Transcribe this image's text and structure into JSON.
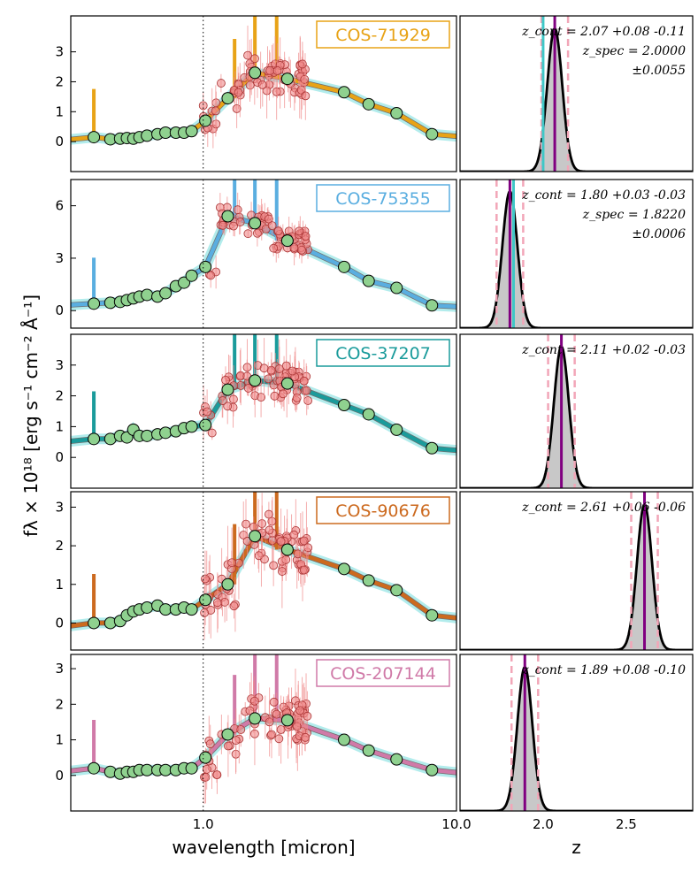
{
  "chart_data": {
    "type": "scatter",
    "description_axes": {
      "sed_xlabel": "wavelength [micron]",
      "ylabel": "f$_\\lambda$ × 10$^{18}$ [erg s$^{-1}$ cm$^{-2}$ Å$^{-1}$]",
      "ylabel_text": "fλ × 10¹⁸ [erg s⁻¹ cm⁻² Å⁻¹]",
      "pz_xlabel": "z",
      "sed_x_ticks": [
        "1.0",
        "10.0"
      ],
      "sed_xlim": [
        0.3,
        10.0
      ],
      "pz_x_ticks": [
        "2.0",
        "2.5"
      ],
      "pz_xlim": [
        1.5,
        2.9
      ]
    },
    "panels": [
      {
        "name": "COS-71929",
        "color": "#e8a317",
        "ylim": [
          -1,
          4.2
        ],
        "yticks": [
          "0",
          "1",
          "2",
          "3"
        ],
        "photometry": [
          [
            0.37,
            0.15
          ],
          [
            0.43,
            0.08
          ],
          [
            0.47,
            0.1
          ],
          [
            0.5,
            0.12
          ],
          [
            0.53,
            0.1
          ],
          [
            0.56,
            0.15
          ],
          [
            0.6,
            0.2
          ],
          [
            0.66,
            0.25
          ],
          [
            0.71,
            0.3
          ],
          [
            0.78,
            0.3
          ],
          [
            0.84,
            0.3
          ],
          [
            0.9,
            0.35
          ],
          [
            1.02,
            0.7
          ],
          [
            1.25,
            1.45
          ],
          [
            1.6,
            2.3
          ],
          [
            2.15,
            2.1
          ],
          [
            3.6,
            1.65
          ],
          [
            4.5,
            1.25
          ],
          [
            5.8,
            0.95
          ],
          [
            8.0,
            0.25
          ]
        ],
        "pz": {
          "z_cont": "2.07",
          "err_plus": "+0.08",
          "err_minus": "-0.11",
          "z_spec": "2.0000",
          "z_spec_err": "±0.0055",
          "spec_z": 2.0,
          "phot_z": 2.07
        }
      },
      {
        "name": "COS-75355",
        "color": "#5aaee0",
        "ylim": [
          -1,
          7.5
        ],
        "yticks": [
          "0",
          "3",
          "6"
        ],
        "photometry": [
          [
            0.37,
            0.4
          ],
          [
            0.43,
            0.45
          ],
          [
            0.47,
            0.5
          ],
          [
            0.5,
            0.6
          ],
          [
            0.53,
            0.7
          ],
          [
            0.56,
            0.8
          ],
          [
            0.6,
            0.9
          ],
          [
            0.66,
            0.8
          ],
          [
            0.71,
            1.0
          ],
          [
            0.78,
            1.4
          ],
          [
            0.84,
            1.6
          ],
          [
            0.9,
            2.0
          ],
          [
            1.02,
            2.5
          ],
          [
            1.25,
            5.4
          ],
          [
            1.6,
            5.0
          ],
          [
            2.15,
            4.0
          ],
          [
            3.6,
            2.5
          ],
          [
            4.5,
            1.7
          ],
          [
            5.8,
            1.3
          ],
          [
            8.0,
            0.3
          ]
        ],
        "pz": {
          "z_cont": "1.80",
          "err_plus": "+0.03",
          "err_minus": "-0.03",
          "z_spec": "1.8220",
          "z_spec_err": "±0.0006",
          "spec_z": 1.822,
          "phot_z": 1.8
        }
      },
      {
        "name": "COS-37207",
        "color": "#1a9b9b",
        "ylim": [
          -1,
          4.0
        ],
        "yticks": [
          "0",
          "1",
          "2",
          "3"
        ],
        "photometry": [
          [
            0.37,
            0.6
          ],
          [
            0.43,
            0.6
          ],
          [
            0.47,
            0.7
          ],
          [
            0.5,
            0.65
          ],
          [
            0.53,
            0.9
          ],
          [
            0.56,
            0.7
          ],
          [
            0.6,
            0.7
          ],
          [
            0.66,
            0.75
          ],
          [
            0.71,
            0.8
          ],
          [
            0.78,
            0.85
          ],
          [
            0.84,
            0.95
          ],
          [
            0.9,
            1.0
          ],
          [
            1.02,
            1.05
          ],
          [
            1.25,
            2.2
          ],
          [
            1.6,
            2.5
          ],
          [
            2.15,
            2.4
          ],
          [
            3.6,
            1.7
          ],
          [
            4.5,
            1.4
          ],
          [
            5.8,
            0.9
          ],
          [
            8.0,
            0.3
          ]
        ],
        "pz": {
          "z_cont": "2.11",
          "err_plus": "+0.02",
          "err_minus": "-0.03",
          "z_spec": "",
          "z_spec_err": "",
          "spec_z": null,
          "phot_z": 2.11
        }
      },
      {
        "name": "COS-90676",
        "color": "#cc6a1f",
        "ylim": [
          -0.7,
          3.4
        ],
        "yticks": [
          "0",
          "1",
          "2",
          "3"
        ],
        "photometry": [
          [
            0.37,
            0.0
          ],
          [
            0.43,
            0.0
          ],
          [
            0.47,
            0.05
          ],
          [
            0.5,
            0.2
          ],
          [
            0.53,
            0.3
          ],
          [
            0.56,
            0.35
          ],
          [
            0.6,
            0.4
          ],
          [
            0.66,
            0.45
          ],
          [
            0.71,
            0.35
          ],
          [
            0.78,
            0.35
          ],
          [
            0.84,
            0.4
          ],
          [
            0.9,
            0.35
          ],
          [
            1.02,
            0.6
          ],
          [
            1.25,
            1.0
          ],
          [
            1.6,
            2.25
          ],
          [
            2.15,
            1.9
          ],
          [
            3.6,
            1.4
          ],
          [
            4.5,
            1.1
          ],
          [
            5.8,
            0.85
          ],
          [
            8.0,
            0.2
          ]
        ],
        "pz": {
          "z_cont": "2.61",
          "err_plus": "+0.06",
          "err_minus": "-0.06",
          "z_spec": "",
          "z_spec_err": "",
          "spec_z": null,
          "phot_z": 2.61
        }
      },
      {
        "name": "COS-207144",
        "color": "#d07aa8",
        "ylim": [
          -1,
          3.4
        ],
        "yticks": [
          "0",
          "1",
          "2",
          "3"
        ],
        "photometry": [
          [
            0.37,
            0.2
          ],
          [
            0.43,
            0.1
          ],
          [
            0.47,
            0.05
          ],
          [
            0.5,
            0.1
          ],
          [
            0.53,
            0.1
          ],
          [
            0.56,
            0.15
          ],
          [
            0.6,
            0.15
          ],
          [
            0.66,
            0.15
          ],
          [
            0.71,
            0.15
          ],
          [
            0.78,
            0.15
          ],
          [
            0.84,
            0.2
          ],
          [
            0.9,
            0.2
          ],
          [
            1.02,
            0.5
          ],
          [
            1.25,
            1.15
          ],
          [
            1.6,
            1.6
          ],
          [
            2.15,
            1.55
          ],
          [
            3.6,
            1.0
          ],
          [
            4.5,
            0.7
          ],
          [
            5.8,
            0.45
          ],
          [
            8.0,
            0.15
          ]
        ],
        "pz": {
          "z_cont": "1.89",
          "err_plus": "+0.08",
          "err_minus": "-0.10",
          "z_spec": "",
          "z_spec_err": "",
          "spec_z": null,
          "phot_z": 1.89
        }
      }
    ]
  },
  "colors": {
    "spec_point": "#f08a8a",
    "phot_point": "#8fd18f",
    "model_band": "#7fe0e0",
    "model_grey": "#707070",
    "pz_fill": "#c8c8c8",
    "pz_line": "#000000",
    "zspec_line": "#3fc7c7",
    "zphot_line": "#800080",
    "pz_dashed": "#f2a6b8"
  }
}
